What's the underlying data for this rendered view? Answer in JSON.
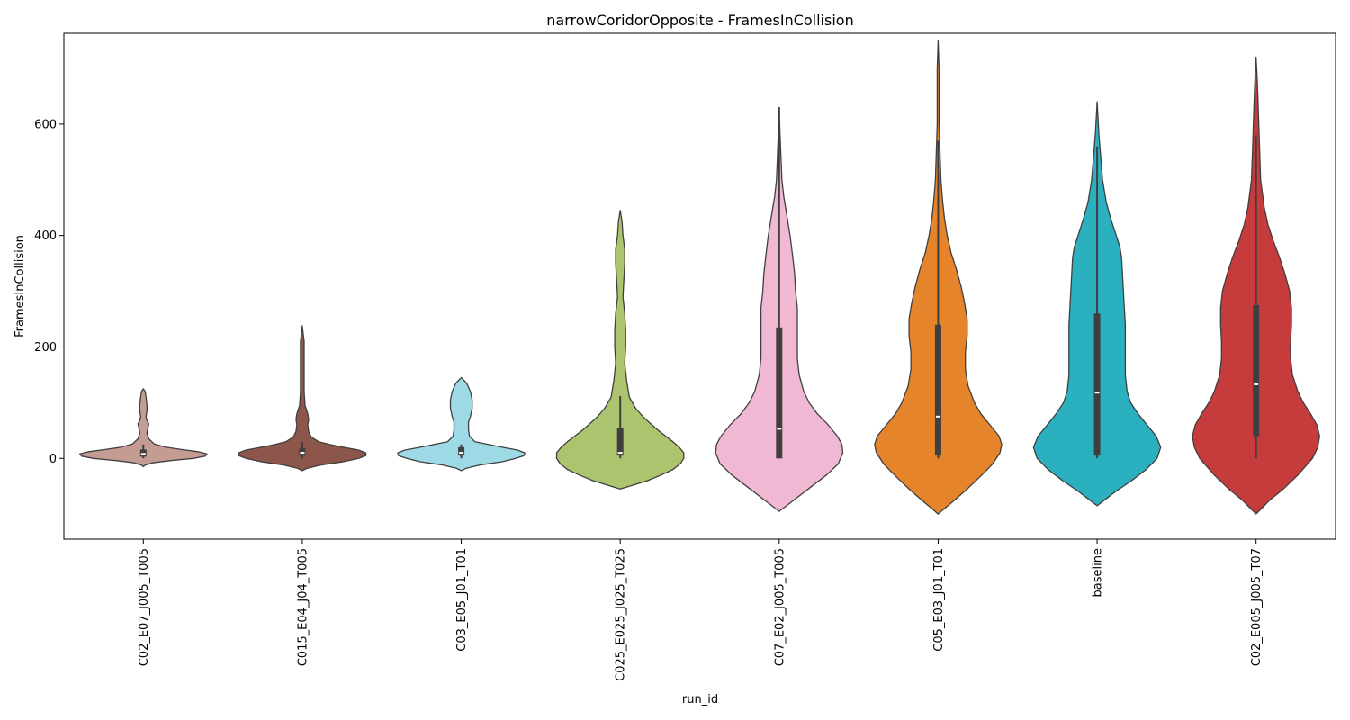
{
  "chart_data": {
    "type": "violin",
    "title": "narrowCoridorOpposite - FramesInCollision",
    "xlabel": "run_id",
    "ylabel": "FramesInCollision",
    "ylim": [
      -145,
      763
    ],
    "yticks": [
      0,
      200,
      400,
      600
    ],
    "grid": false,
    "categories": [
      "C02_E07_J005_T005",
      "C015_E04_J04_T005",
      "C03_E05_J01_T01",
      "C025_E025_J025_T025",
      "C07_E02_J005_T005",
      "C05_E03_J01_T01",
      "baseline",
      "C02_E005_J005_T07"
    ],
    "colors": [
      "#c49c94",
      "#8c564b",
      "#9edae5",
      "#abc46d",
      "#f0b8d3",
      "#e6842c",
      "#2ab0be",
      "#c63b3b"
    ],
    "series": [
      {
        "label": "C02_E07_J005_T005",
        "ymin": -15,
        "ymax": 125,
        "min": 0,
        "q1": 3,
        "median": 8,
        "q3": 16,
        "max": 25,
        "profile": [
          [
            -15,
            0
          ],
          [
            -12,
            2
          ],
          [
            -8,
            10
          ],
          [
            -4,
            30
          ],
          [
            0,
            55
          ],
          [
            4,
            68
          ],
          [
            8,
            70
          ],
          [
            12,
            60
          ],
          [
            16,
            42
          ],
          [
            20,
            25
          ],
          [
            26,
            12
          ],
          [
            35,
            6
          ],
          [
            45,
            4
          ],
          [
            55,
            5
          ],
          [
            62,
            6
          ],
          [
            68,
            4
          ],
          [
            75,
            3
          ],
          [
            85,
            4
          ],
          [
            95,
            4
          ],
          [
            110,
            3
          ],
          [
            120,
            2
          ],
          [
            125,
            0
          ]
        ]
      },
      {
        "label": "C015_E04_J04_T005",
        "ymin": -22,
        "ymax": 238,
        "min": 0,
        "q1": 5,
        "median": 10,
        "q3": 18,
        "max": 30,
        "profile": [
          [
            -22,
            0
          ],
          [
            -18,
            5
          ],
          [
            -12,
            20
          ],
          [
            -6,
            45
          ],
          [
            0,
            62
          ],
          [
            5,
            70
          ],
          [
            10,
            70
          ],
          [
            15,
            62
          ],
          [
            20,
            45
          ],
          [
            25,
            30
          ],
          [
            30,
            18
          ],
          [
            38,
            10
          ],
          [
            48,
            7
          ],
          [
            60,
            6
          ],
          [
            70,
            7
          ],
          [
            80,
            6
          ],
          [
            95,
            3
          ],
          [
            120,
            2
          ],
          [
            150,
            2
          ],
          [
            180,
            2
          ],
          [
            210,
            2
          ],
          [
            238,
            0
          ]
        ]
      },
      {
        "label": "C03_E05_J01_T01",
        "ymin": -22,
        "ymax": 145,
        "min": 0,
        "q1": 5,
        "median": 10,
        "q3": 20,
        "max": 25,
        "profile": [
          [
            -22,
            0
          ],
          [
            -18,
            5
          ],
          [
            -12,
            20
          ],
          [
            -6,
            45
          ],
          [
            0,
            60
          ],
          [
            5,
            69
          ],
          [
            10,
            70
          ],
          [
            15,
            62
          ],
          [
            20,
            45
          ],
          [
            25,
            30
          ],
          [
            30,
            15
          ],
          [
            40,
            9
          ],
          [
            52,
            8
          ],
          [
            65,
            8
          ],
          [
            75,
            10
          ],
          [
            90,
            12
          ],
          [
            105,
            12
          ],
          [
            120,
            10
          ],
          [
            135,
            6
          ],
          [
            145,
            0
          ]
        ]
      },
      {
        "label": "C025_E025_J025_T025",
        "ymin": -55,
        "ymax": 445,
        "min": 0,
        "q1": 5,
        "median": 10,
        "q3": 55,
        "max": 112,
        "profile": [
          [
            -55,
            0
          ],
          [
            -50,
            10
          ],
          [
            -40,
            30
          ],
          [
            -30,
            45
          ],
          [
            -20,
            58
          ],
          [
            -10,
            66
          ],
          [
            0,
            70
          ],
          [
            10,
            70
          ],
          [
            20,
            65
          ],
          [
            30,
            58
          ],
          [
            40,
            50
          ],
          [
            50,
            42
          ],
          [
            60,
            35
          ],
          [
            75,
            25
          ],
          [
            90,
            17
          ],
          [
            110,
            10
          ],
          [
            140,
            7
          ],
          [
            170,
            5
          ],
          [
            200,
            6
          ],
          [
            230,
            6
          ],
          [
            260,
            5
          ],
          [
            290,
            3
          ],
          [
            320,
            4
          ],
          [
            350,
            5
          ],
          [
            375,
            5
          ],
          [
            400,
            3
          ],
          [
            425,
            2
          ],
          [
            445,
            0
          ]
        ]
      },
      {
        "label": "C07_E02_J005_T005",
        "ymin": -95,
        "ymax": 630,
        "min": 0,
        "q1": 0,
        "median": 53,
        "q3": 235,
        "max": 630,
        "profile": [
          [
            -95,
            0
          ],
          [
            -85,
            8
          ],
          [
            -70,
            20
          ],
          [
            -50,
            36
          ],
          [
            -30,
            52
          ],
          [
            -10,
            65
          ],
          [
            10,
            70
          ],
          [
            25,
            69
          ],
          [
            40,
            64
          ],
          [
            60,
            54
          ],
          [
            80,
            42
          ],
          [
            100,
            33
          ],
          [
            120,
            27
          ],
          [
            150,
            22
          ],
          [
            180,
            20
          ],
          [
            210,
            20
          ],
          [
            240,
            20
          ],
          [
            270,
            20
          ],
          [
            300,
            18
          ],
          [
            330,
            17
          ],
          [
            360,
            15
          ],
          [
            400,
            12
          ],
          [
            440,
            8
          ],
          [
            470,
            5
          ],
          [
            500,
            3
          ],
          [
            540,
            2
          ],
          [
            580,
            1
          ],
          [
            630,
            0
          ]
        ]
      },
      {
        "label": "C05_E03_J01_T01",
        "ymin": -100,
        "ymax": 750,
        "min": 0,
        "q1": 5,
        "median": 75,
        "q3": 240,
        "max": 570,
        "profile": [
          [
            -100,
            0
          ],
          [
            -90,
            7
          ],
          [
            -75,
            18
          ],
          [
            -55,
            32
          ],
          [
            -30,
            48
          ],
          [
            -10,
            60
          ],
          [
            10,
            68
          ],
          [
            25,
            70
          ],
          [
            40,
            67
          ],
          [
            60,
            57
          ],
          [
            80,
            47
          ],
          [
            100,
            40
          ],
          [
            130,
            33
          ],
          [
            160,
            30
          ],
          [
            190,
            30
          ],
          [
            220,
            32
          ],
          [
            250,
            32
          ],
          [
            280,
            29
          ],
          [
            310,
            25
          ],
          [
            340,
            20
          ],
          [
            370,
            14
          ],
          [
            400,
            10
          ],
          [
            430,
            7
          ],
          [
            460,
            5
          ],
          [
            500,
            3
          ],
          [
            550,
            2
          ],
          [
            600,
            1
          ],
          [
            650,
            1
          ],
          [
            700,
            1
          ],
          [
            750,
            0
          ]
        ]
      },
      {
        "label": "baseline",
        "ymin": -85,
        "ymax": 640,
        "min": 0,
        "q1": 5,
        "median": 118,
        "q3": 260,
        "max": 560,
        "profile": [
          [
            -85,
            0
          ],
          [
            -75,
            8
          ],
          [
            -60,
            20
          ],
          [
            -40,
            38
          ],
          [
            -20,
            54
          ],
          [
            0,
            66
          ],
          [
            20,
            70
          ],
          [
            40,
            65
          ],
          [
            60,
            55
          ],
          [
            80,
            45
          ],
          [
            100,
            37
          ],
          [
            120,
            33
          ],
          [
            150,
            31
          ],
          [
            180,
            31
          ],
          [
            210,
            31
          ],
          [
            240,
            31
          ],
          [
            270,
            30
          ],
          [
            300,
            29
          ],
          [
            330,
            28
          ],
          [
            360,
            27
          ],
          [
            380,
            25
          ],
          [
            400,
            21
          ],
          [
            430,
            15
          ],
          [
            460,
            10
          ],
          [
            500,
            6
          ],
          [
            540,
            4
          ],
          [
            580,
            2
          ],
          [
            610,
            1
          ],
          [
            640,
            0
          ]
        ]
      },
      {
        "label": "C02_E005_J005_T07",
        "ymin": -100,
        "ymax": 720,
        "min": 0,
        "q1": 40,
        "median": 133,
        "q3": 275,
        "max": 580,
        "profile": [
          [
            -100,
            0
          ],
          [
            -90,
            6
          ],
          [
            -75,
            15
          ],
          [
            -55,
            30
          ],
          [
            -30,
            46
          ],
          [
            0,
            62
          ],
          [
            20,
            68
          ],
          [
            40,
            70
          ],
          [
            60,
            67
          ],
          [
            80,
            60
          ],
          [
            100,
            52
          ],
          [
            120,
            46
          ],
          [
            150,
            40
          ],
          [
            180,
            38
          ],
          [
            210,
            38
          ],
          [
            240,
            39
          ],
          [
            270,
            39
          ],
          [
            300,
            37
          ],
          [
            330,
            32
          ],
          [
            360,
            26
          ],
          [
            390,
            19
          ],
          [
            420,
            13
          ],
          [
            450,
            9
          ],
          [
            500,
            5
          ],
          [
            550,
            4
          ],
          [
            600,
            3
          ],
          [
            650,
            2
          ],
          [
            690,
            1
          ],
          [
            720,
            0
          ]
        ]
      }
    ]
  }
}
